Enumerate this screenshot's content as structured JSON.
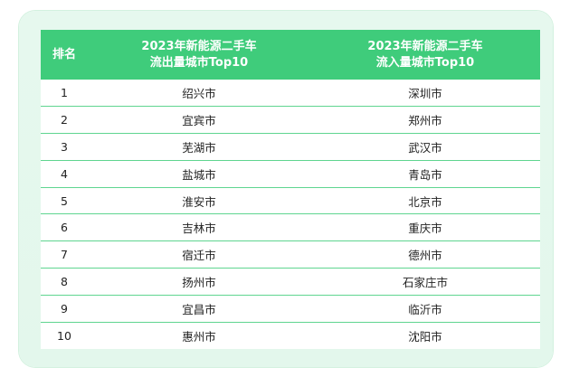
{
  "table": {
    "headers": {
      "rank": "排名",
      "outflow": [
        "2023年新能源二手车",
        "流出量城市Top10"
      ],
      "inflow": [
        "2023年新能源二手车",
        "流入量城市Top10"
      ]
    },
    "rows": [
      {
        "rank": "1",
        "outflow": "绍兴市",
        "inflow": "深圳市"
      },
      {
        "rank": "2",
        "outflow": "宜宾市",
        "inflow": "郑州市"
      },
      {
        "rank": "3",
        "outflow": "芜湖市",
        "inflow": "武汉市"
      },
      {
        "rank": "4",
        "outflow": "盐城市",
        "inflow": "青岛市"
      },
      {
        "rank": "5",
        "outflow": "淮安市",
        "inflow": "北京市"
      },
      {
        "rank": "6",
        "outflow": "吉林市",
        "inflow": "重庆市"
      },
      {
        "rank": "7",
        "outflow": "宿迁市",
        "inflow": "德州市"
      },
      {
        "rank": "8",
        "outflow": "扬州市",
        "inflow": "石家庄市"
      },
      {
        "rank": "9",
        "outflow": "宜昌市",
        "inflow": "临沂市"
      },
      {
        "rank": "10",
        "outflow": "惠州市",
        "inflow": "沈阳市"
      }
    ]
  },
  "colors": {
    "header_bg": "#3fcc7b",
    "frame_bg": "#e6f8ee",
    "row_divider": "#5fd590"
  }
}
